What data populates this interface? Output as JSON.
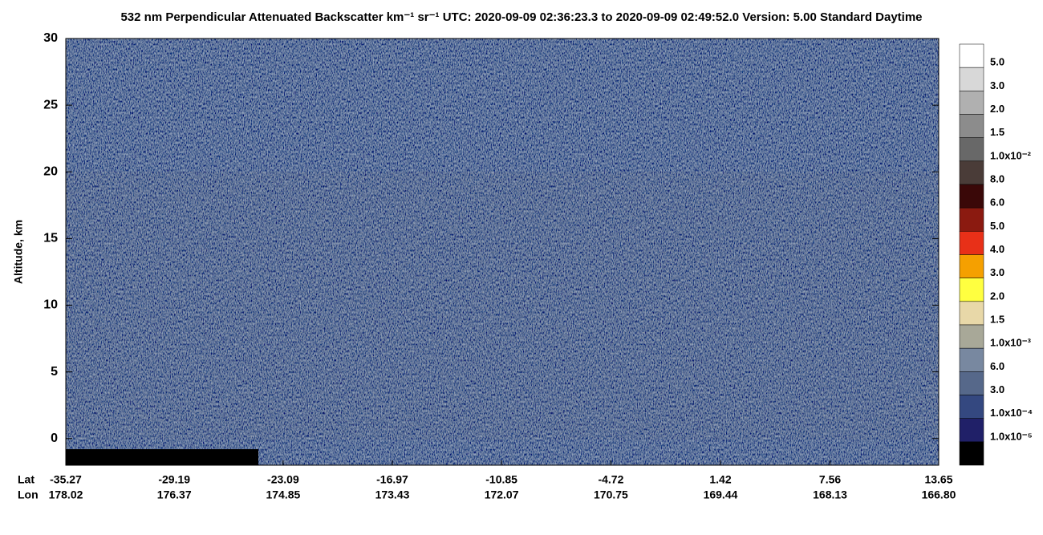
{
  "chart_data": {
    "type": "heatmap",
    "title": "532 nm Perpendicular Attenuated Backscatter km⁻¹ sr⁻¹  UTC: 2020-09-09 02:36:23.3 to 2020-09-09 02:49:52.0  Version: 5.00 Standard Daytime",
    "ylabel": "Altitude, km",
    "ylim": [
      -2,
      30
    ],
    "yticks": [
      0,
      5,
      10,
      15,
      20,
      25,
      30
    ],
    "x_row_names": [
      "Lat",
      "Lon"
    ],
    "xlim": [
      -35.27,
      13.65
    ],
    "xticks": [
      -35.27,
      -29.19,
      -23.09,
      -16.97,
      -10.85,
      -4.72,
      1.42,
      7.56,
      13.65
    ],
    "xticks2": [
      178.02,
      176.37,
      174.85,
      173.43,
      172.07,
      170.75,
      169.44,
      168.13,
      {
        "value": 166.8,
        "label": "166.80"
      }
    ],
    "colorbar": {
      "colors": [
        "#ffffff",
        "#d8d8d8",
        "#b0b0b0",
        "#8c8c8c",
        "#686868",
        "#4a3c38",
        "#3a0808",
        "#8b1a10",
        "#e83018",
        "#f5a000",
        "#ffff40",
        "#e8d8a8",
        "#a8a898",
        "#7888a0",
        "#56688a",
        "#344880",
        "#202068",
        "#000000"
      ],
      "labels": [
        "5.0",
        "3.0",
        "2.0",
        "1.5",
        "1.0x10⁻²",
        "8.0",
        "6.0",
        "5.0",
        "4.0",
        "3.0",
        "2.0",
        "1.5",
        "1.0x10⁻³",
        "6.0",
        "3.0",
        "1.0x10⁻⁴",
        "1.0x10⁻⁵"
      ]
    }
  }
}
